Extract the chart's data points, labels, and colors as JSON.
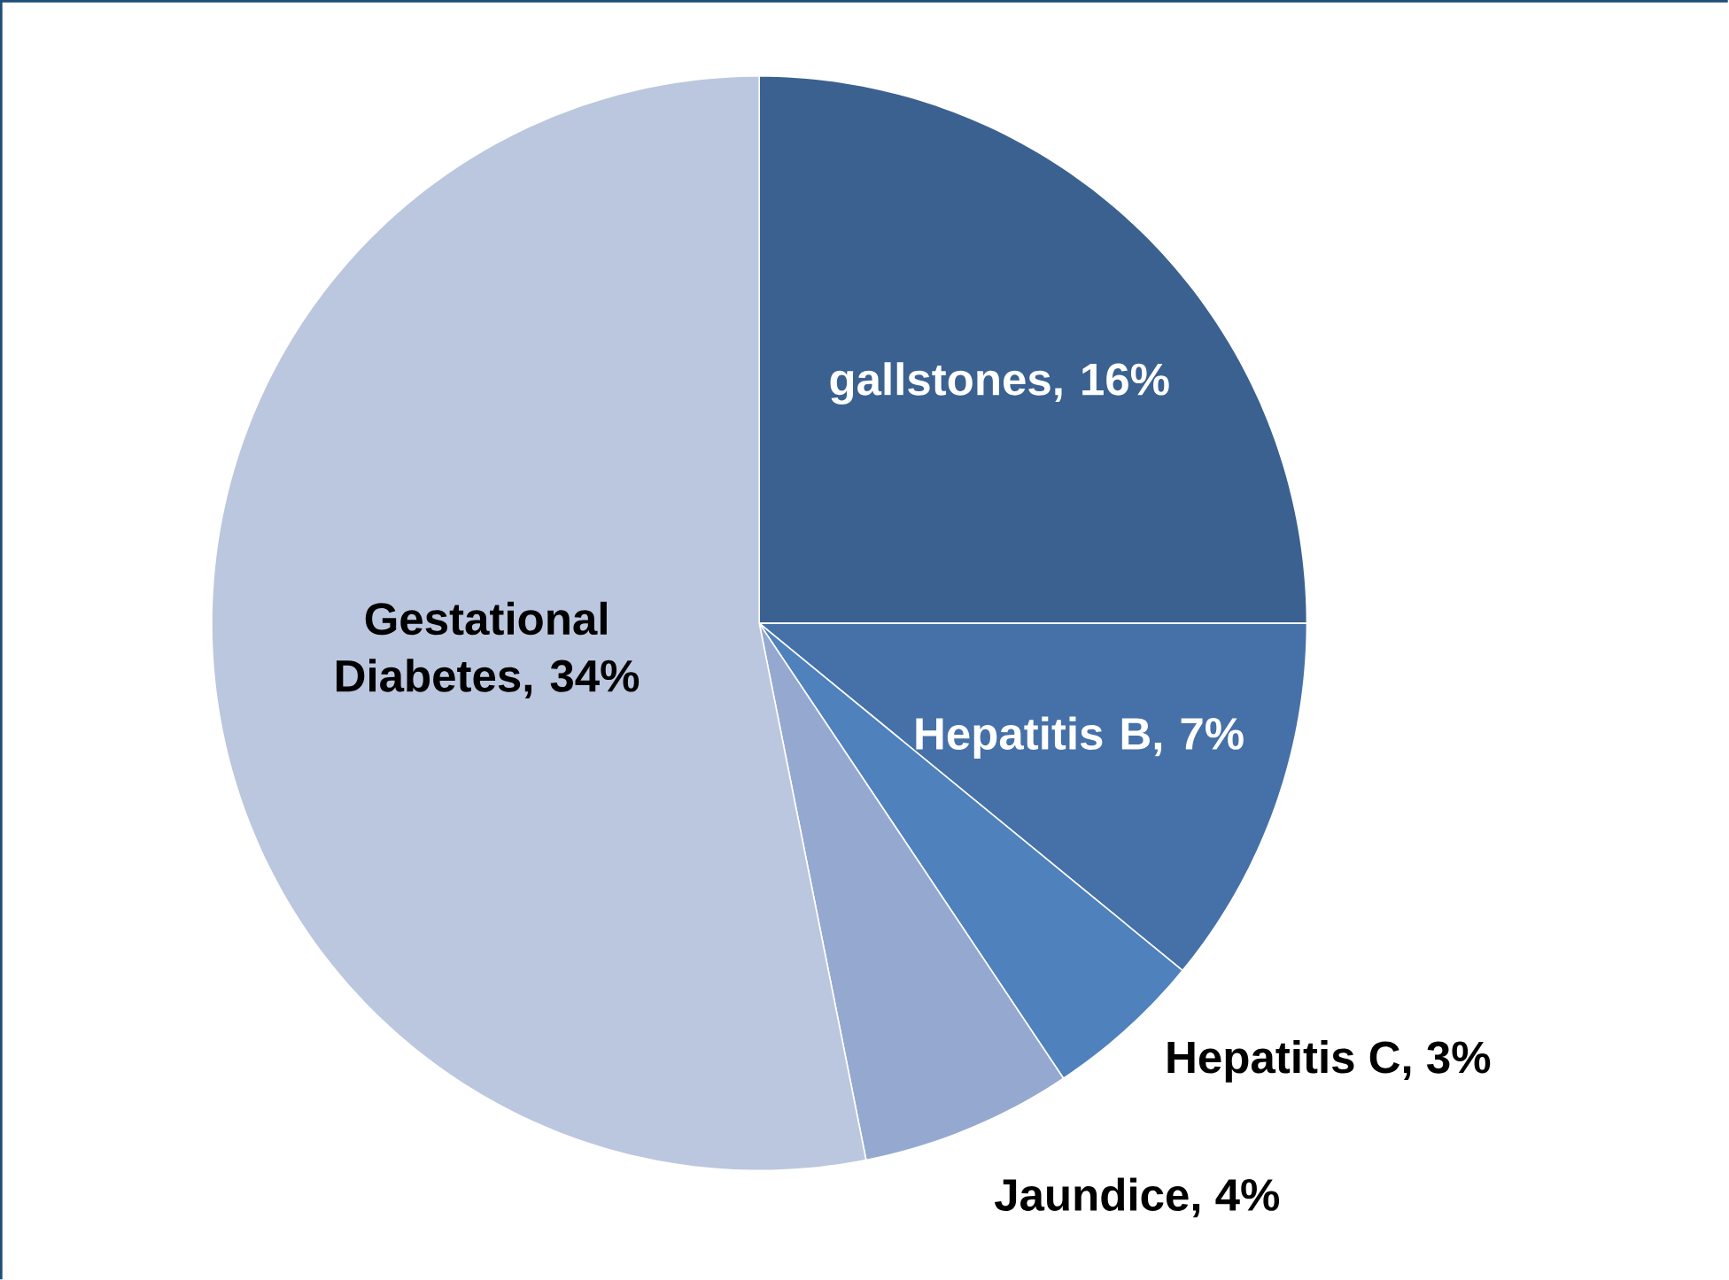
{
  "chart_data": {
    "type": "pie",
    "categories": [
      "gallstones, 16%",
      "Hepatitis B, 7%",
      "Hepatitis C, 3%",
      "Jaundice, 4%",
      "Gestational Diabetes, 34%"
    ],
    "values": [
      16,
      7,
      3,
      4,
      34
    ],
    "colors": [
      "#3a6190",
      "#4571a8",
      "#4f81bd",
      "#95a9d0",
      "#bbc7de"
    ]
  }
}
